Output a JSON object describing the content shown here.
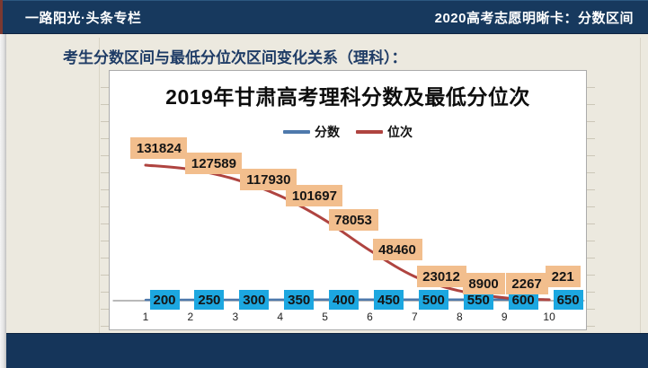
{
  "header": {
    "left_title": "一路阳光·头条专栏",
    "right_title": "2020高考志愿明晰卡：分数区间"
  },
  "subtitle": "考生分数区间与最低分位次区间变化关系（理科）：",
  "chart_data": {
    "type": "line",
    "title": "2019年甘肃高考理科分数及最低分位次",
    "categories": [
      1,
      2,
      3,
      4,
      5,
      6,
      7,
      8,
      9,
      10
    ],
    "series": [
      {
        "name": "分数",
        "color": "#4E79AC",
        "label_bg": "#1CA7E0",
        "smooth": false,
        "values": [
          200,
          250,
          300,
          350,
          400,
          450,
          500,
          550,
          600,
          650
        ]
      },
      {
        "name": "位次",
        "color": "#AF4440",
        "label_bg": "#F2BE8D",
        "smooth": true,
        "values": [
          131824,
          127589,
          117930,
          101697,
          78053,
          48460,
          23012,
          8900,
          2267,
          221
        ]
      }
    ],
    "legend_position": "top-center",
    "grid": false,
    "xlabel": "",
    "ylabel": "",
    "y_axis_labels_visible": false,
    "x_axis_labels_visible": true,
    "data_labels": "all points, raw integers without thousands separators"
  },
  "colors": {
    "header_bg": "#17395E",
    "footer_bg": "#15355A",
    "page_bg": "#ECE9DF",
    "accent_stripe": "#7B3931",
    "chart_bg": "#FFFFFF",
    "subtitle_color": "#1F3C66",
    "score_line": "#4E79AC",
    "rank_line": "#AF4440",
    "score_label_bg": "#1CA7E0",
    "rank_label_bg": "#F2BE8D"
  }
}
